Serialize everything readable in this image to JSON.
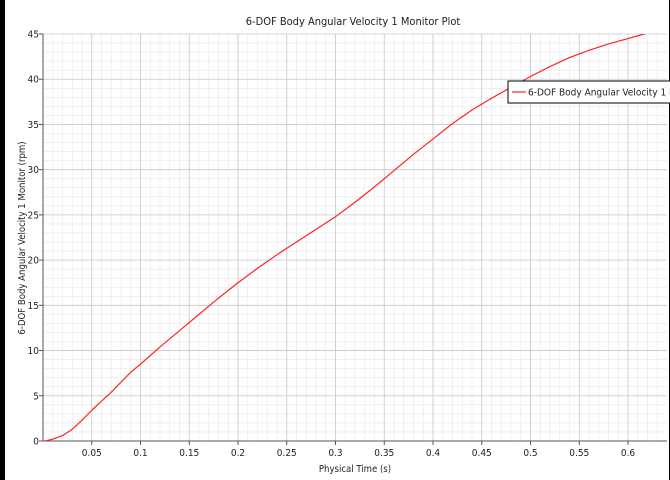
{
  "chart_data": {
    "type": "line",
    "title": "6-DOF Body Angular Velocity 1 Monitor Plot",
    "xlabel": "Physical Time (s)",
    "ylabel": "6-DOF Body Angular Velocity  1  Monitor (rpm)",
    "xlim": [
      0.0,
      0.64
    ],
    "ylim": [
      0,
      45
    ],
    "x_ticks": [
      "0.05",
      "0.1",
      "0.15",
      "0.2",
      "0.25",
      "0.3",
      "0.35",
      "0.4",
      "0.45",
      "0.5",
      "0.55",
      "0.6"
    ],
    "y_ticks": [
      "0",
      "5",
      "10",
      "15",
      "20",
      "25",
      "30",
      "35",
      "40",
      "45"
    ],
    "grid": true,
    "legend_position": "top-right",
    "series": [
      {
        "name": "6-DOF Body Angular Velocity 1 Monitor",
        "color": "#ff2222",
        "x": [
          0.002,
          0.01,
          0.02,
          0.03,
          0.04,
          0.05,
          0.06,
          0.07,
          0.08,
          0.09,
          0.1,
          0.12,
          0.14,
          0.16,
          0.18,
          0.2,
          0.22,
          0.24,
          0.26,
          0.28,
          0.3,
          0.32,
          0.34,
          0.36,
          0.38,
          0.4,
          0.42,
          0.44,
          0.46,
          0.48,
          0.5,
          0.52,
          0.54,
          0.56,
          0.58,
          0.6,
          0.62,
          0.64
        ],
        "y": [
          0.0,
          0.2,
          0.6,
          1.3,
          2.3,
          3.4,
          4.4,
          5.4,
          6.5,
          7.6,
          8.5,
          10.4,
          12.2,
          14.0,
          15.8,
          17.5,
          19.1,
          20.6,
          22.0,
          23.4,
          24.8,
          26.4,
          28.1,
          29.9,
          31.7,
          33.4,
          35.1,
          36.6,
          37.9,
          39.1,
          40.3,
          41.4,
          42.4,
          43.2,
          43.9,
          44.5,
          45.1,
          45.4
        ]
      }
    ]
  }
}
